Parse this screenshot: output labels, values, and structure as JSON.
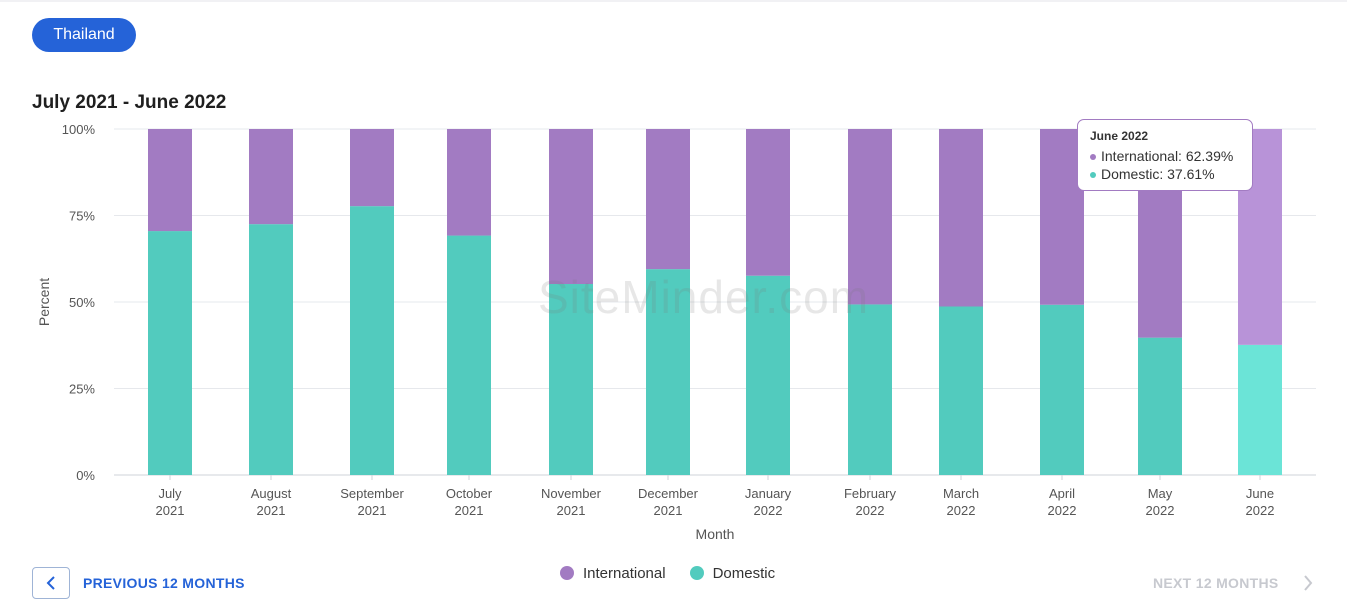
{
  "country_selector": {
    "label": "Thailand"
  },
  "period_title": "July 2021 - June 2022",
  "watermark": "SiteMinder.com",
  "tooltip": {
    "title": "June 2022",
    "rows": [
      {
        "label": "International: 62.39%",
        "color": "#a27bc2"
      },
      {
        "label": "Domestic: 37.61%",
        "color": "#52cbbe"
      }
    ]
  },
  "legend": [
    {
      "label": "International",
      "color": "#a27bc2"
    },
    {
      "label": "Domestic",
      "color": "#52cbbe"
    }
  ],
  "navigation": {
    "previous_label": "PREVIOUS 12 MONTHS",
    "next_label": "NEXT 12 MONTHS"
  },
  "chart_data": {
    "type": "bar",
    "stacked": true,
    "xlabel": "Month",
    "ylabel": "Percent",
    "ylim": [
      0,
      100
    ],
    "y_ticks": [
      "0%",
      "25%",
      "50%",
      "75%",
      "100%"
    ],
    "grid": true,
    "legend_position": "bottom-center",
    "categories": [
      [
        "July",
        "2021"
      ],
      [
        "August",
        "2021"
      ],
      [
        "September",
        "2021"
      ],
      [
        "October",
        "2021"
      ],
      [
        "November",
        "2021"
      ],
      [
        "December",
        "2021"
      ],
      [
        "January",
        "2022"
      ],
      [
        "February",
        "2022"
      ],
      [
        "March",
        "2022"
      ],
      [
        "April",
        "2022"
      ],
      [
        "May",
        "2022"
      ],
      [
        "June",
        "2022"
      ]
    ],
    "series": [
      {
        "name": "Domestic",
        "color": "#52cbbe",
        "highlight_color": "#6be4d7",
        "values": [
          70.5,
          72.5,
          77.7,
          69.2,
          55.2,
          59.5,
          57.6,
          49.3,
          48.7,
          49.2,
          39.7,
          37.61
        ]
      },
      {
        "name": "International",
        "color": "#a27bc2",
        "highlight_color": "#b893d8",
        "values": [
          29.5,
          27.5,
          22.3,
          30.8,
          44.8,
          40.5,
          42.4,
          50.7,
          51.3,
          50.8,
          60.3,
          62.39
        ]
      }
    ],
    "highlighted_category": 11
  }
}
